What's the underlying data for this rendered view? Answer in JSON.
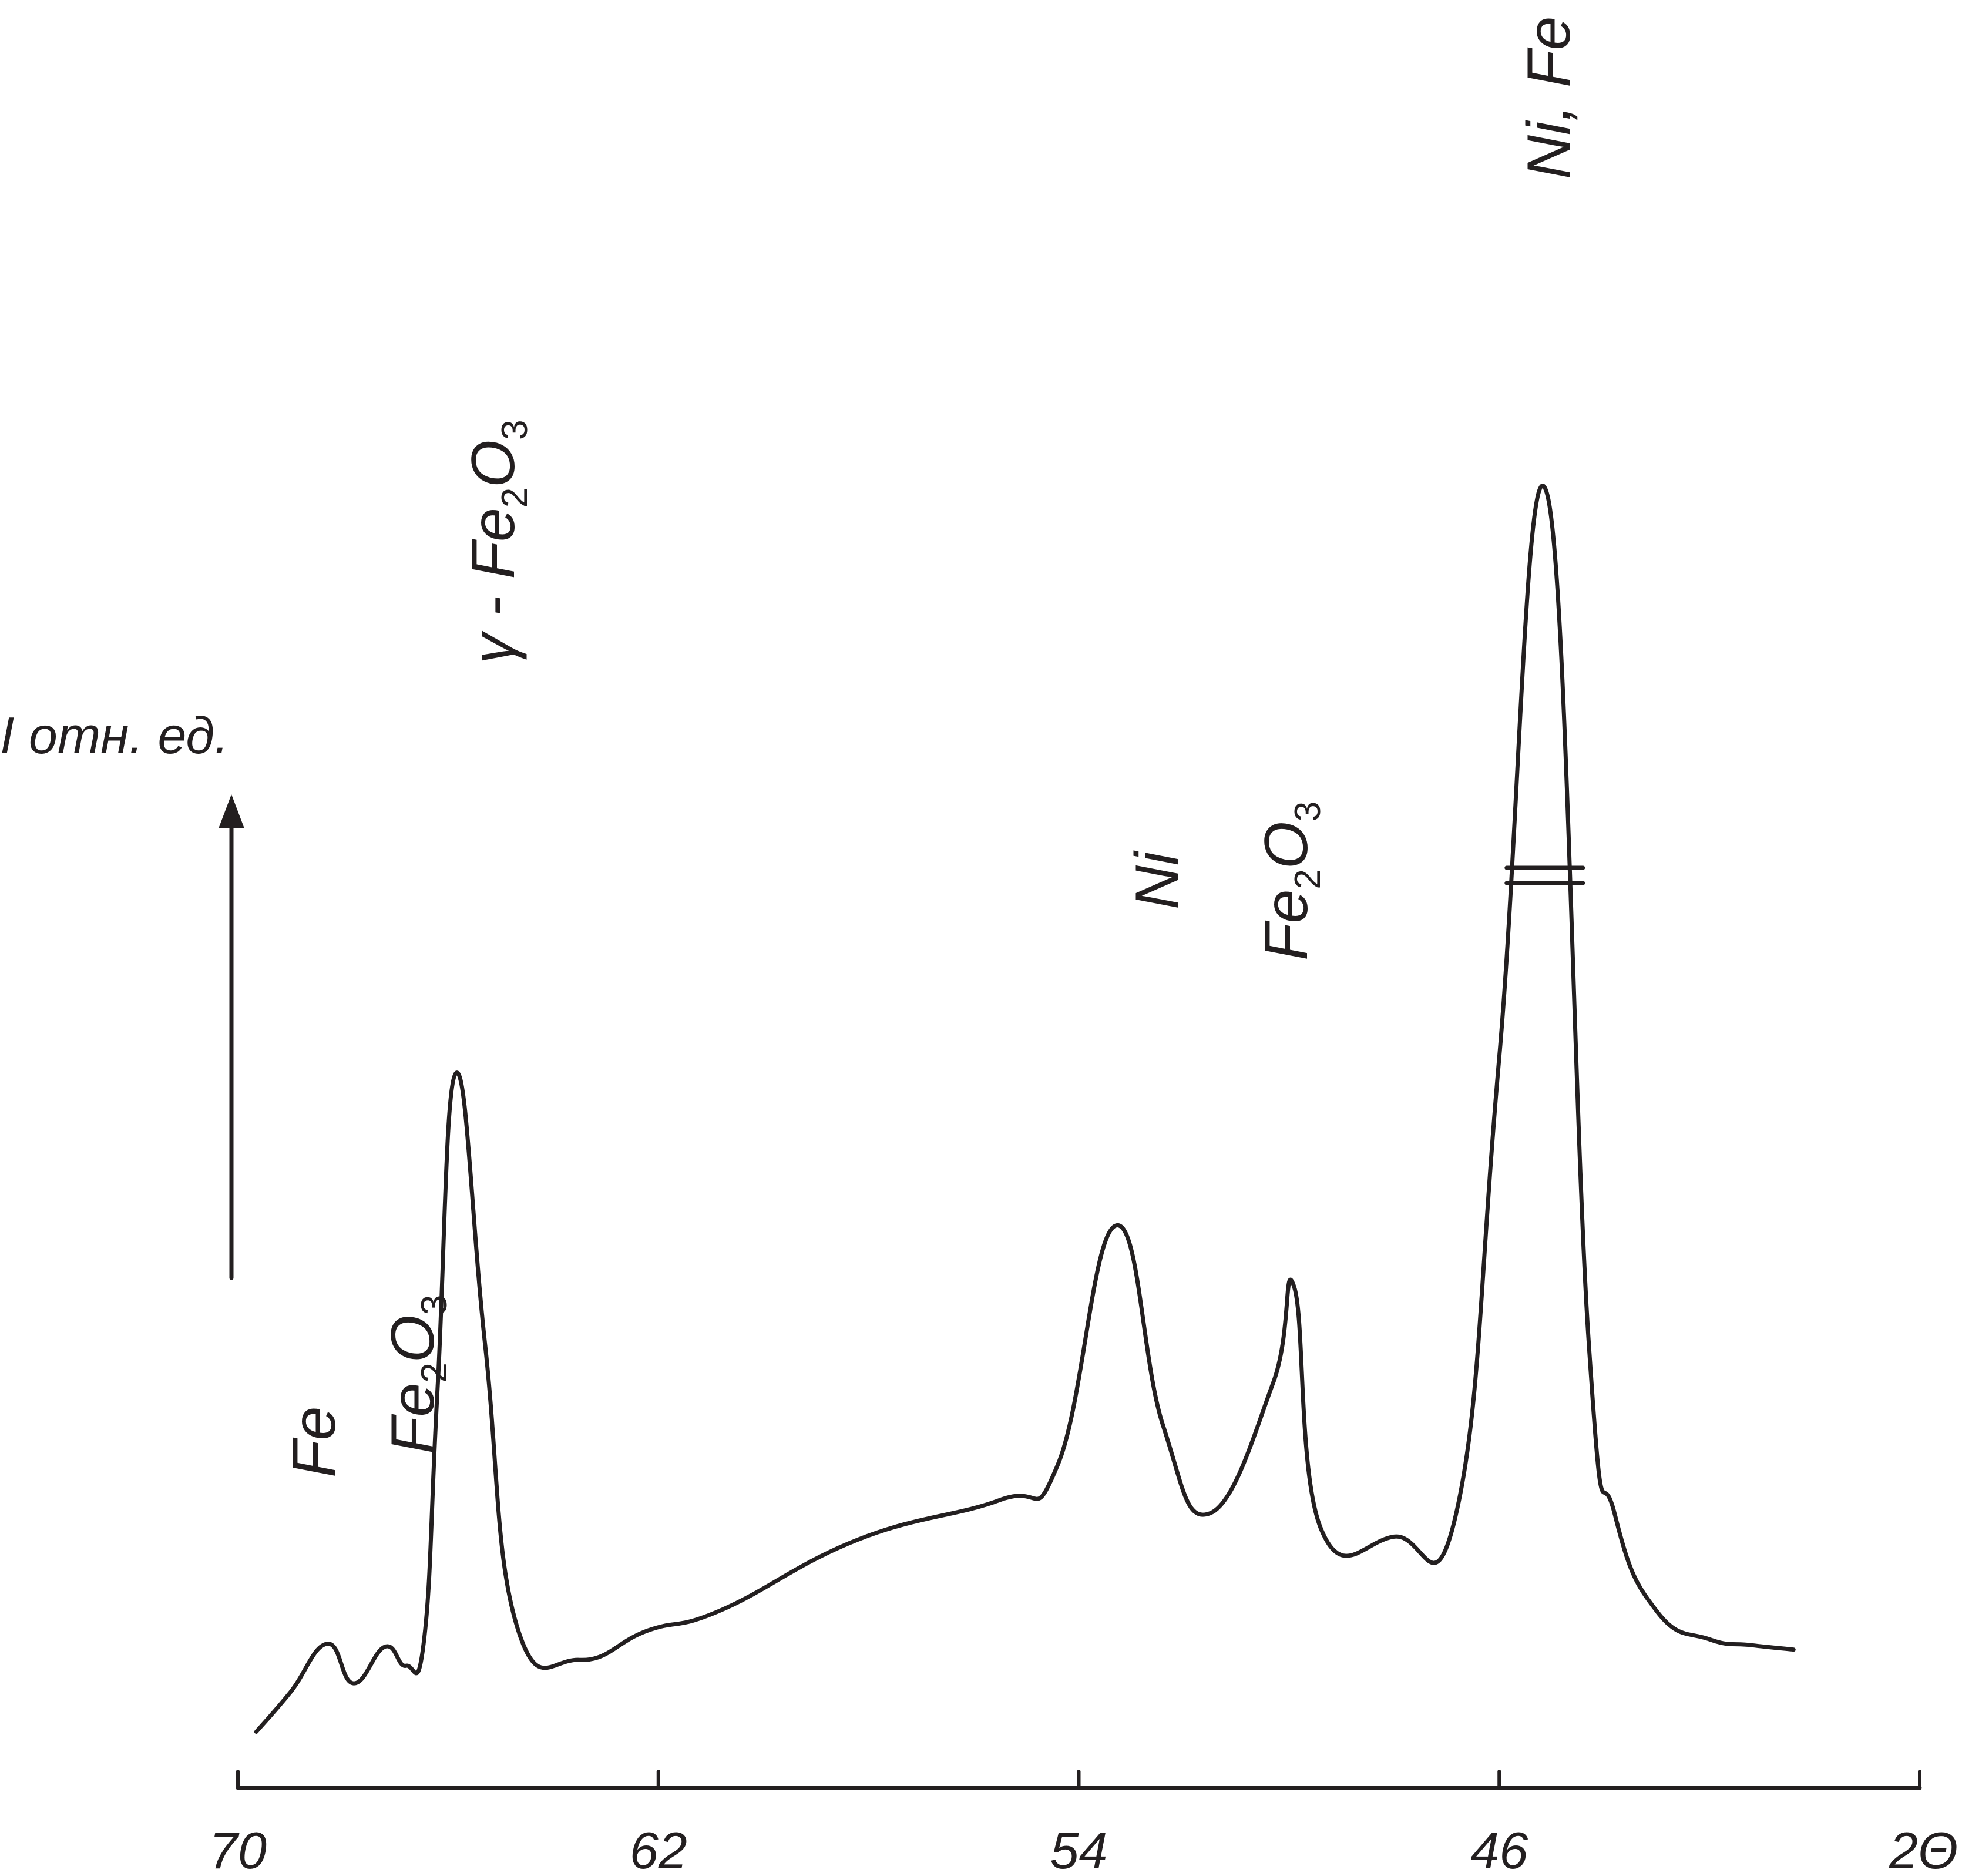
{
  "chart_data": {
    "type": "line",
    "xlabel": "2Θ",
    "ylabel": "I отн. ед.",
    "xlim": [
      70,
      38
    ],
    "x_reversed": true,
    "x_ticks": [
      70,
      62,
      54,
      46
    ],
    "x_tick_labels": [
      "70",
      "62",
      "54",
      "46"
    ],
    "y_axis_break_on_peak": "Ni, Fe",
    "series": [
      {
        "points": [
          [
            69.65,
            0.5
          ],
          [
            69.0,
            3.2
          ],
          [
            68.3,
            6.5
          ],
          [
            67.8,
            3.8
          ],
          [
            67.2,
            6.3
          ],
          [
            66.8,
            5.0
          ],
          [
            66.45,
            7.0
          ],
          [
            66.2,
            24.0
          ],
          [
            65.85,
            45.4
          ],
          [
            65.3,
            27.0
          ],
          [
            64.7,
            7.8
          ],
          [
            63.5,
            5.4
          ],
          [
            62.2,
            7.4
          ],
          [
            60.8,
            8.8
          ],
          [
            58.2,
            13.6
          ],
          [
            55.5,
            16.3
          ],
          [
            54.4,
            18.7
          ],
          [
            53.3,
            35.0
          ],
          [
            52.4,
            21.4
          ],
          [
            51.5,
            15.4
          ],
          [
            50.3,
            24.3
          ],
          [
            49.9,
            30.8
          ],
          [
            49.4,
            14.4
          ],
          [
            48.0,
            13.8
          ],
          [
            46.8,
            15.7
          ],
          [
            46.0,
            46.5
          ],
          [
            45.1,
            85.0
          ],
          [
            44.3,
            27.2
          ],
          [
            43.8,
            15.3
          ],
          [
            43.0,
            8.7
          ],
          [
            42.0,
            6.8
          ],
          [
            41.2,
            6.4
          ],
          [
            40.4,
            6.1
          ]
        ]
      }
    ],
    "annotations": [
      {
        "x": 68.3,
        "text": "Fe"
      },
      {
        "x": 67.0,
        "base": "Fe",
        "subscript1": "2",
        "mid": "O",
        "subscript2": "3"
      },
      {
        "x": 65.85,
        "prefix": "γ - ",
        "base": "Fe",
        "subscript1": "2",
        "mid": "O",
        "subscript2": "3"
      },
      {
        "x": 53.3,
        "text": "Ni"
      },
      {
        "x": 50.3,
        "base": "Fe",
        "subscript1": "2",
        "mid": "O",
        "subscript2": "3"
      },
      {
        "x": 45.1,
        "text": "Ni, Fe"
      }
    ]
  }
}
